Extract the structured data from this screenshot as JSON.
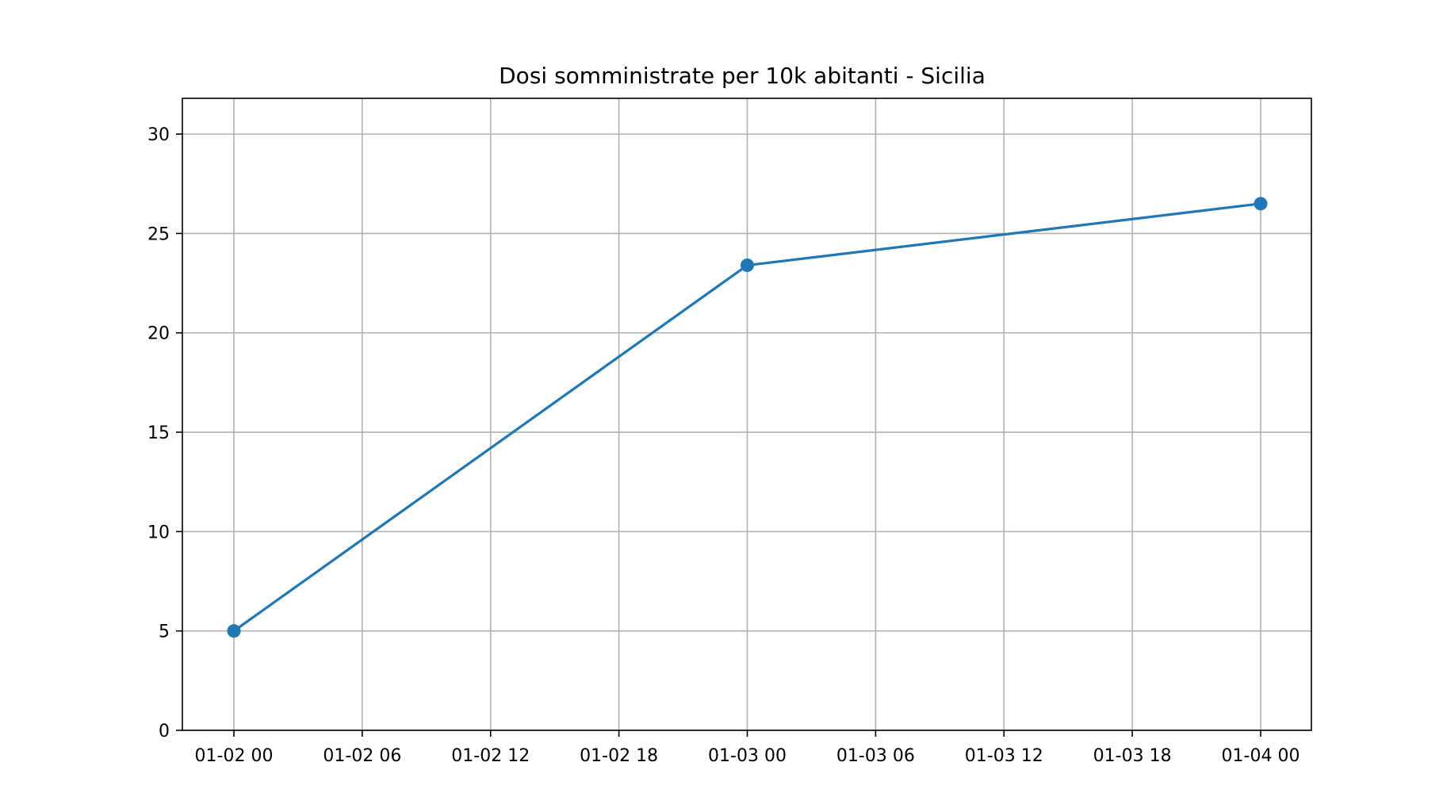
{
  "chart_data": {
    "type": "line",
    "title": "Dosi somministrate per 10k abitanti - Sicilia",
    "xlabel": "",
    "ylabel": "",
    "x_ticks": [
      "01-02 00",
      "01-02 06",
      "01-02 12",
      "01-02 18",
      "01-03 00",
      "01-03 06",
      "01-03 12",
      "01-03 18",
      "01-04 00"
    ],
    "y_ticks": [
      "0",
      "5",
      "10",
      "15",
      "20",
      "25",
      "30"
    ],
    "ylim": [
      0,
      31.8
    ],
    "grid": true,
    "series": [
      {
        "color": "#1f77b4",
        "marker": "circle",
        "points": [
          {
            "x": "01-02 00",
            "y": 5.0
          },
          {
            "x": "01-03 00",
            "y": 23.4
          },
          {
            "x": "01-04 00",
            "y": 26.5
          }
        ]
      }
    ]
  }
}
